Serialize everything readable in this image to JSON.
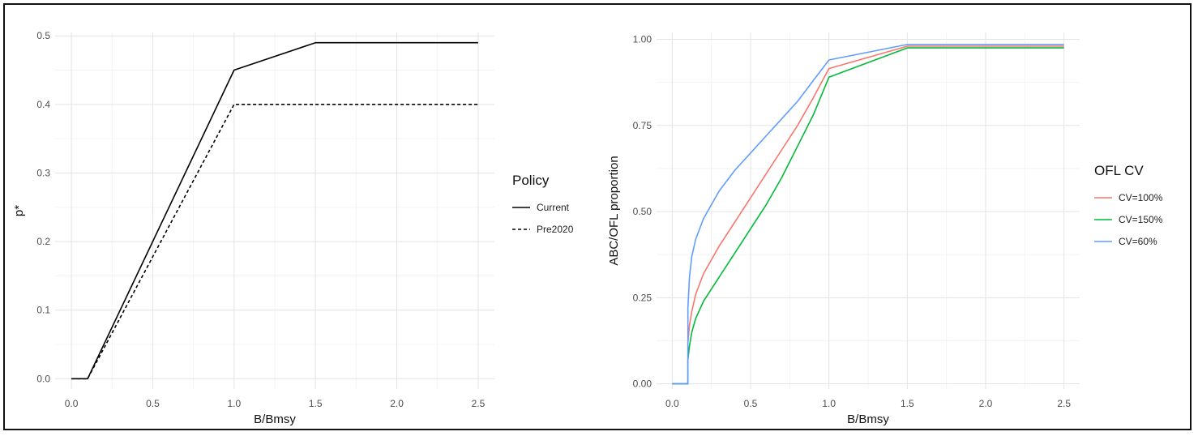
{
  "chart_data": [
    {
      "type": "line",
      "xlabel": "B/Bmsy",
      "ylabel": "p*",
      "xlim": [
        -0.1,
        2.6
      ],
      "ylim": [
        -0.015,
        0.505
      ],
      "x_ticks": [
        "0.0",
        "0.5",
        "1.0",
        "1.5",
        "2.0",
        "2.5"
      ],
      "y_ticks": [
        "0.0",
        "0.1",
        "0.2",
        "0.3",
        "0.4",
        "0.5"
      ],
      "grid": true,
      "legend": {
        "title": "Policy",
        "position": "right"
      },
      "series": [
        {
          "name": "Current",
          "style": "solid",
          "color": "#000000",
          "x": [
            0,
            0.1,
            1.0,
            1.5,
            2.5
          ],
          "y": [
            0,
            0,
            0.45,
            0.49,
            0.49
          ]
        },
        {
          "name": "Pre2020",
          "style": "dashed",
          "color": "#000000",
          "x": [
            0,
            0.1,
            1.0,
            2.5
          ],
          "y": [
            0,
            0,
            0.4,
            0.4
          ]
        }
      ]
    },
    {
      "type": "line",
      "xlabel": "B/Bmsy",
      "ylabel": "ABC/OFL proportion",
      "xlim": [
        -0.1,
        2.6
      ],
      "ylim": [
        -0.015,
        1.02
      ],
      "x_ticks": [
        "0.0",
        "0.5",
        "1.0",
        "1.5",
        "2.0",
        "2.5"
      ],
      "y_ticks": [
        "0.00",
        "0.25",
        "0.50",
        "0.75",
        "1.00"
      ],
      "grid": true,
      "legend": {
        "title": "OFL CV",
        "position": "right"
      },
      "series": [
        {
          "name": "CV=100%",
          "color": "#F8766D",
          "x": [
            0,
            0.1,
            0.1,
            0.11,
            0.125,
            0.15,
            0.2,
            0.3,
            0.4,
            0.5,
            0.6,
            0.7,
            0.8,
            0.9,
            1.0,
            1.5,
            2.5
          ],
          "y": [
            0,
            0,
            0.12,
            0.17,
            0.21,
            0.26,
            0.32,
            0.4,
            0.47,
            0.54,
            0.61,
            0.68,
            0.75,
            0.83,
            0.915,
            0.98,
            0.98
          ]
        },
        {
          "name": "CV=150%",
          "color": "#00BA38",
          "x": [
            0,
            0.1,
            0.1,
            0.11,
            0.125,
            0.15,
            0.2,
            0.3,
            0.4,
            0.5,
            0.6,
            0.7,
            0.8,
            0.9,
            1.0,
            1.5,
            2.5
          ],
          "y": [
            0,
            0,
            0.07,
            0.11,
            0.15,
            0.19,
            0.24,
            0.31,
            0.38,
            0.45,
            0.52,
            0.6,
            0.69,
            0.78,
            0.89,
            0.975,
            0.975
          ]
        },
        {
          "name": "CV=60%",
          "color": "#619CFF",
          "x": [
            0,
            0.1,
            0.1,
            0.11,
            0.125,
            0.15,
            0.2,
            0.3,
            0.4,
            0.5,
            0.6,
            0.7,
            0.8,
            0.9,
            1.0,
            1.5,
            2.5
          ],
          "y": [
            0,
            0,
            0.22,
            0.31,
            0.37,
            0.42,
            0.48,
            0.56,
            0.62,
            0.67,
            0.72,
            0.77,
            0.82,
            0.88,
            0.94,
            0.985,
            0.985
          ]
        }
      ]
    }
  ]
}
